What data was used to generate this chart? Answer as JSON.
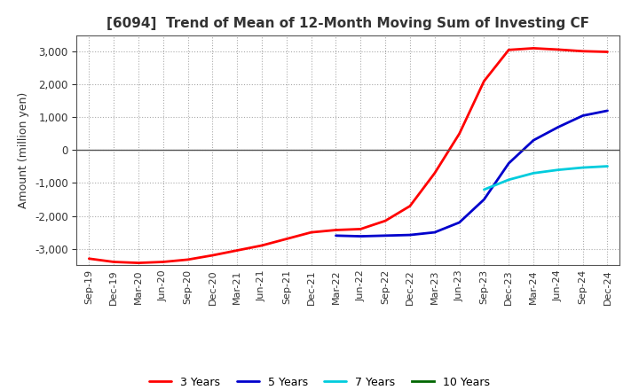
{
  "title": "[6094]  Trend of Mean of 12-Month Moving Sum of Investing CF",
  "ylabel": "Amount (million yen)",
  "ylim": [
    -3500,
    3500
  ],
  "yticks": [
    -3000,
    -2000,
    -1000,
    0,
    1000,
    2000,
    3000
  ],
  "background_color": "#ffffff",
  "grid_color": "#aaaaaa",
  "legend": [
    "3 Years",
    "5 Years",
    "7 Years",
    "10 Years"
  ],
  "legend_colors": [
    "#ff0000",
    "#0000cc",
    "#00ccdd",
    "#006600"
  ],
  "x_labels": [
    "Sep-19",
    "Dec-19",
    "Mar-20",
    "Jun-20",
    "Sep-20",
    "Dec-20",
    "Mar-21",
    "Jun-21",
    "Sep-21",
    "Dec-21",
    "Mar-22",
    "Jun-22",
    "Sep-22",
    "Dec-22",
    "Mar-23",
    "Jun-23",
    "Sep-23",
    "Dec-23",
    "Mar-24",
    "Jun-24",
    "Sep-24",
    "Dec-24"
  ],
  "series_3y": [
    -3300,
    -3400,
    -3430,
    -3400,
    -3330,
    -3200,
    -3050,
    -2900,
    -2700,
    -2500,
    -2430,
    -2400,
    -2150,
    -1700,
    -700,
    500,
    2100,
    3050,
    3100,
    3060,
    3010,
    2990
  ],
  "series_5y": [
    null,
    null,
    null,
    null,
    null,
    null,
    null,
    null,
    null,
    null,
    -2600,
    -2620,
    -2600,
    -2580,
    -2500,
    -2200,
    -1500,
    -400,
    300,
    700,
    1050,
    1200
  ],
  "series_7y": [
    null,
    null,
    null,
    null,
    null,
    null,
    null,
    null,
    null,
    null,
    null,
    null,
    null,
    null,
    null,
    null,
    -1200,
    -900,
    -700,
    -600,
    -530,
    -490
  ],
  "series_10y": [
    null,
    null,
    null,
    null,
    null,
    null,
    null,
    null,
    null,
    null,
    null,
    null,
    null,
    null,
    null,
    null,
    null,
    null,
    null,
    null,
    null,
    null
  ]
}
